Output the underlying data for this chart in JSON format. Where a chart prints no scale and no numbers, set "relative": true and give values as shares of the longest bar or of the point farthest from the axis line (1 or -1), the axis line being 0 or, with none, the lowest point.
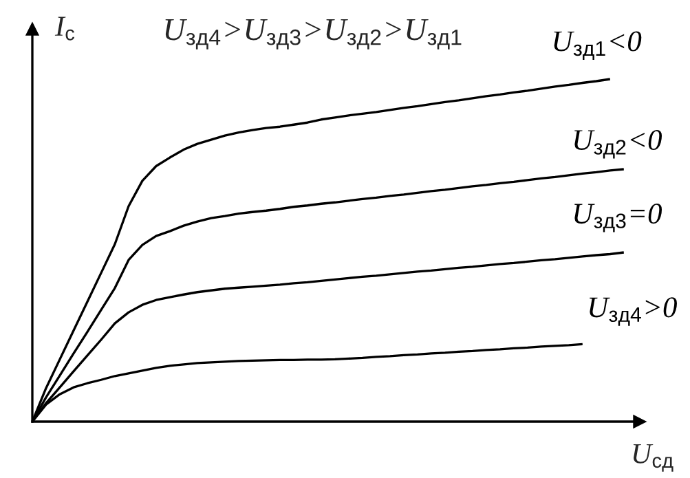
{
  "chart_data": {
    "type": "line",
    "title": "U$_{зд4}$>U$_{зд3}$>U$_{зд2}$>U$_{зд1}$",
    "xlabel": "U$_{сд}$",
    "ylabel": "I$_{с}$",
    "relative": true,
    "marker": "none",
    "line_style": "solid",
    "categories": [
      null,
      null,
      null,
      null,
      null,
      null,
      null,
      null,
      null,
      null,
      null,
      null,
      null,
      null,
      null,
      null,
      null,
      null,
      null,
      null,
      null,
      null,
      null,
      null,
      null,
      null,
      null,
      null,
      null,
      null,
      null,
      null,
      null,
      null,
      null,
      null,
      null,
      null,
      null,
      null,
      null,
      null,
      null,
      null
    ],
    "series": [
      {
        "name": "U$_{зд1}$<0",
        "color": "#000000",
        "values": [
          0,
          0.098,
          0.182,
          0.266,
          0.35,
          0.434,
          0.518,
          0.629,
          0.703,
          0.746,
          0.771,
          0.794,
          0.811,
          0.823,
          0.835,
          0.844,
          0.851,
          0.857,
          0.861,
          0.867,
          0.873,
          0.882,
          0.888,
          0.894,
          0.899,
          0.904,
          0.91,
          0.916,
          0.921,
          0.927,
          0.933,
          0.938,
          0.944,
          0.95,
          0.955,
          0.961,
          0.966,
          0.972,
          0.978,
          0.983,
          0.989,
          0.994,
          1.0,
          null
        ]
      },
      {
        "name": "U$_{зд2}$<0",
        "color": "#000000",
        "values": [
          0,
          0.071,
          0.135,
          0.199,
          0.262,
          0.326,
          0.39,
          0.472,
          0.516,
          0.542,
          0.556,
          0.572,
          0.584,
          0.594,
          0.6,
          0.607,
          0.612,
          0.616,
          0.621,
          0.627,
          0.631,
          0.636,
          0.64,
          0.645,
          0.65,
          0.654,
          0.659,
          0.663,
          0.668,
          0.673,
          0.677,
          0.682,
          0.687,
          0.691,
          0.696,
          0.7,
          0.705,
          0.71,
          0.714,
          0.719,
          0.724,
          0.728,
          0.733,
          0.737
        ]
      },
      {
        "name": "U$_{зд3}$=0",
        "color": "#000000",
        "values": [
          0,
          0.054,
          0.1,
          0.147,
          0.193,
          0.239,
          0.287,
          0.319,
          0.341,
          0.355,
          0.363,
          0.371,
          0.378,
          0.383,
          0.388,
          0.391,
          0.394,
          0.397,
          0.4,
          0.404,
          0.407,
          0.411,
          0.415,
          0.419,
          0.423,
          0.426,
          0.43,
          0.434,
          0.438,
          0.441,
          0.445,
          0.449,
          0.452,
          0.456,
          0.46,
          0.463,
          0.467,
          0.471,
          0.474,
          0.478,
          0.482,
          0.486,
          0.489,
          0.494
        ]
      },
      {
        "name": "U$_{зд4}$>0",
        "color": "#000000",
        "values": [
          0,
          0.05,
          0.08,
          0.1,
          0.112,
          0.122,
          0.133,
          0.141,
          0.149,
          0.157,
          0.163,
          0.167,
          0.171,
          0.173,
          0.175,
          0.177,
          0.178,
          0.179,
          0.18,
          0.18,
          0.181,
          0.181,
          0.182,
          0.184,
          0.186,
          0.189,
          0.191,
          0.194,
          0.196,
          0.199,
          0.201,
          0.204,
          0.206,
          0.209,
          0.211,
          0.214,
          0.216,
          0.219,
          0.221,
          0.223,
          0.226,
          null,
          null,
          null
        ]
      }
    ]
  }
}
